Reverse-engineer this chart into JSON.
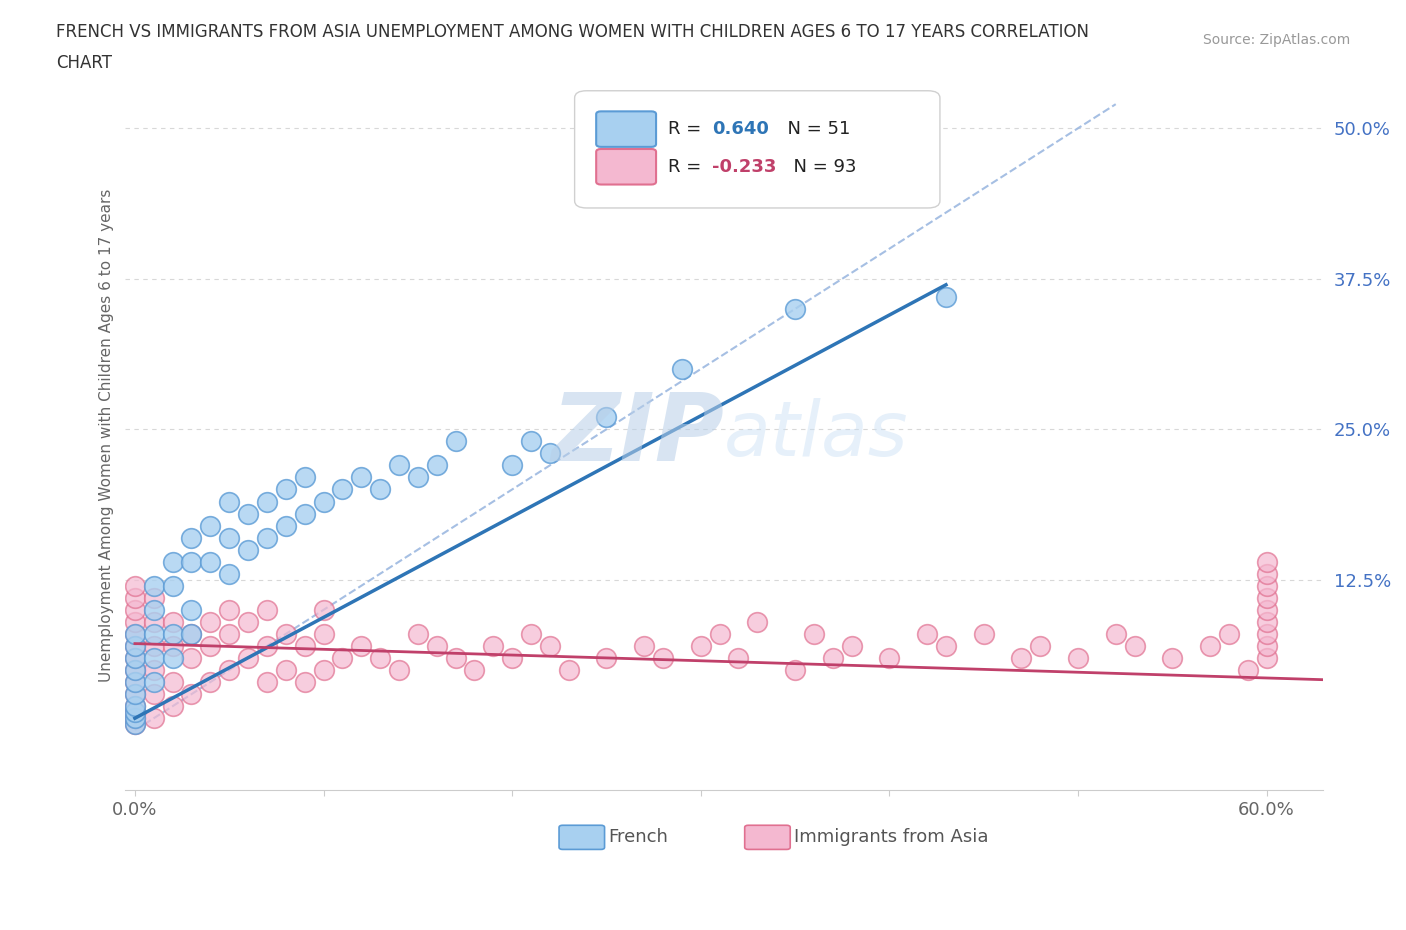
{
  "title_line1": "FRENCH VS IMMIGRANTS FROM ASIA UNEMPLOYMENT AMONG WOMEN WITH CHILDREN AGES 6 TO 17 YEARS CORRELATION",
  "title_line2": "CHART",
  "source_text": "Source: ZipAtlas.com",
  "ylabel": "Unemployment Among Women with Children Ages 6 to 17 years",
  "xlim": [
    -0.005,
    0.63
  ],
  "ylim": [
    -0.05,
    0.54
  ],
  "yticks": [
    0.0,
    0.125,
    0.25,
    0.375,
    0.5
  ],
  "yticklabels": [
    "",
    "12.5%",
    "25.0%",
    "37.5%",
    "50.0%"
  ],
  "xtick_positions": [
    0.0,
    0.1,
    0.2,
    0.3,
    0.4,
    0.5,
    0.6
  ],
  "xticklabels": [
    "0.0%",
    "",
    "",
    "",
    "",
    "",
    "60.0%"
  ],
  "french_R": 0.64,
  "french_N": 51,
  "asia_R": -0.233,
  "asia_N": 93,
  "french_color": "#a8d0f0",
  "french_edge_color": "#5b9bd5",
  "french_line_color": "#2e75b6",
  "asia_color": "#f4b8d0",
  "asia_edge_color": "#e07090",
  "asia_line_color": "#c0406a",
  "diag_line_color": "#9cb8e0",
  "grid_color": "#d8d8d8",
  "ytick_color": "#4472c4",
  "xtick_color": "#666666",
  "watermark_color": "#d0e4f5",
  "legend_border_color": "#d0d0d0",
  "french_x": [
    0.0,
    0.0,
    0.0,
    0.0,
    0.0,
    0.0,
    0.0,
    0.0,
    0.0,
    0.0,
    0.01,
    0.01,
    0.01,
    0.01,
    0.01,
    0.02,
    0.02,
    0.02,
    0.02,
    0.03,
    0.03,
    0.03,
    0.03,
    0.04,
    0.04,
    0.05,
    0.05,
    0.05,
    0.06,
    0.06,
    0.07,
    0.07,
    0.08,
    0.08,
    0.09,
    0.09,
    0.1,
    0.11,
    0.12,
    0.13,
    0.14,
    0.15,
    0.16,
    0.17,
    0.2,
    0.21,
    0.22,
    0.25,
    0.29,
    0.35,
    0.43
  ],
  "french_y": [
    0.005,
    0.01,
    0.015,
    0.02,
    0.03,
    0.04,
    0.05,
    0.06,
    0.07,
    0.08,
    0.04,
    0.06,
    0.08,
    0.1,
    0.12,
    0.06,
    0.08,
    0.12,
    0.14,
    0.08,
    0.1,
    0.14,
    0.16,
    0.14,
    0.17,
    0.13,
    0.16,
    0.19,
    0.15,
    0.18,
    0.16,
    0.19,
    0.17,
    0.2,
    0.18,
    0.21,
    0.19,
    0.2,
    0.21,
    0.2,
    0.22,
    0.21,
    0.22,
    0.24,
    0.22,
    0.24,
    0.23,
    0.26,
    0.3,
    0.35,
    0.36
  ],
  "asia_x": [
    0.0,
    0.0,
    0.0,
    0.0,
    0.0,
    0.0,
    0.0,
    0.0,
    0.0,
    0.0,
    0.0,
    0.0,
    0.0,
    0.0,
    0.01,
    0.01,
    0.01,
    0.01,
    0.01,
    0.01,
    0.02,
    0.02,
    0.02,
    0.02,
    0.03,
    0.03,
    0.03,
    0.04,
    0.04,
    0.04,
    0.05,
    0.05,
    0.05,
    0.06,
    0.06,
    0.07,
    0.07,
    0.07,
    0.08,
    0.08,
    0.09,
    0.09,
    0.1,
    0.1,
    0.1,
    0.11,
    0.12,
    0.13,
    0.14,
    0.15,
    0.16,
    0.17,
    0.18,
    0.19,
    0.2,
    0.21,
    0.22,
    0.23,
    0.25,
    0.27,
    0.28,
    0.3,
    0.31,
    0.32,
    0.33,
    0.35,
    0.36,
    0.37,
    0.38,
    0.4,
    0.42,
    0.43,
    0.45,
    0.47,
    0.48,
    0.5,
    0.52,
    0.53,
    0.55,
    0.57,
    0.58,
    0.59,
    0.6,
    0.6,
    0.6,
    0.6,
    0.6,
    0.6,
    0.6,
    0.6,
    0.6
  ],
  "asia_y": [
    0.005,
    0.01,
    0.015,
    0.02,
    0.03,
    0.04,
    0.05,
    0.06,
    0.07,
    0.08,
    0.09,
    0.1,
    0.11,
    0.12,
    0.01,
    0.03,
    0.05,
    0.07,
    0.09,
    0.11,
    0.02,
    0.04,
    0.07,
    0.09,
    0.03,
    0.06,
    0.08,
    0.04,
    0.07,
    0.09,
    0.05,
    0.08,
    0.1,
    0.06,
    0.09,
    0.04,
    0.07,
    0.1,
    0.05,
    0.08,
    0.04,
    0.07,
    0.05,
    0.08,
    0.1,
    0.06,
    0.07,
    0.06,
    0.05,
    0.08,
    0.07,
    0.06,
    0.05,
    0.07,
    0.06,
    0.08,
    0.07,
    0.05,
    0.06,
    0.07,
    0.06,
    0.07,
    0.08,
    0.06,
    0.09,
    0.05,
    0.08,
    0.06,
    0.07,
    0.06,
    0.08,
    0.07,
    0.08,
    0.06,
    0.07,
    0.06,
    0.08,
    0.07,
    0.06,
    0.07,
    0.08,
    0.05,
    0.06,
    0.07,
    0.08,
    0.09,
    0.1,
    0.11,
    0.12,
    0.13,
    0.14
  ]
}
